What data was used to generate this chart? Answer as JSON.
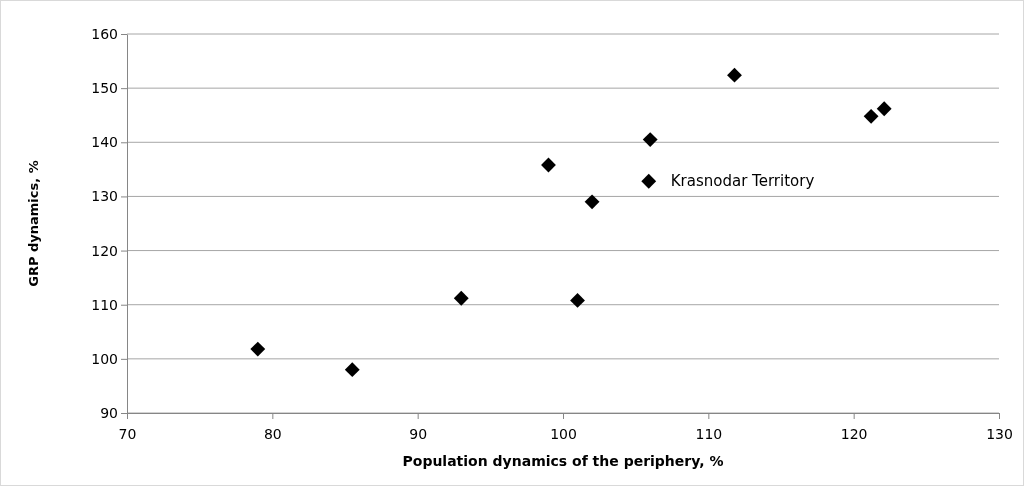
{
  "chart_data": {
    "type": "scatter",
    "xlabel": "Population dynamics of the periphery, %",
    "ylabel": "GRP dynamics, %",
    "x": [
      79,
      85.5,
      93,
      99,
      101,
      102,
      106,
      105.9,
      111.8,
      121.2,
      122.1
    ],
    "values": [
      101.8,
      98,
      111.2,
      135.8,
      110.8,
      129,
      140.5,
      132.8,
      152.4,
      144.8,
      146.2
    ],
    "color": "#000000",
    "marker": "diamond",
    "grid": "y",
    "xlim": [
      70,
      130
    ],
    "xticks": [
      70,
      80,
      90,
      100,
      110,
      120,
      130
    ],
    "ylim": [
      90,
      160
    ],
    "yticks": [
      90,
      100,
      110,
      120,
      130,
      140,
      150,
      160
    ],
    "annotations": [
      {
        "text": "Krasnodar Territory",
        "x": 105.9,
        "y": 132.8
      }
    ]
  }
}
